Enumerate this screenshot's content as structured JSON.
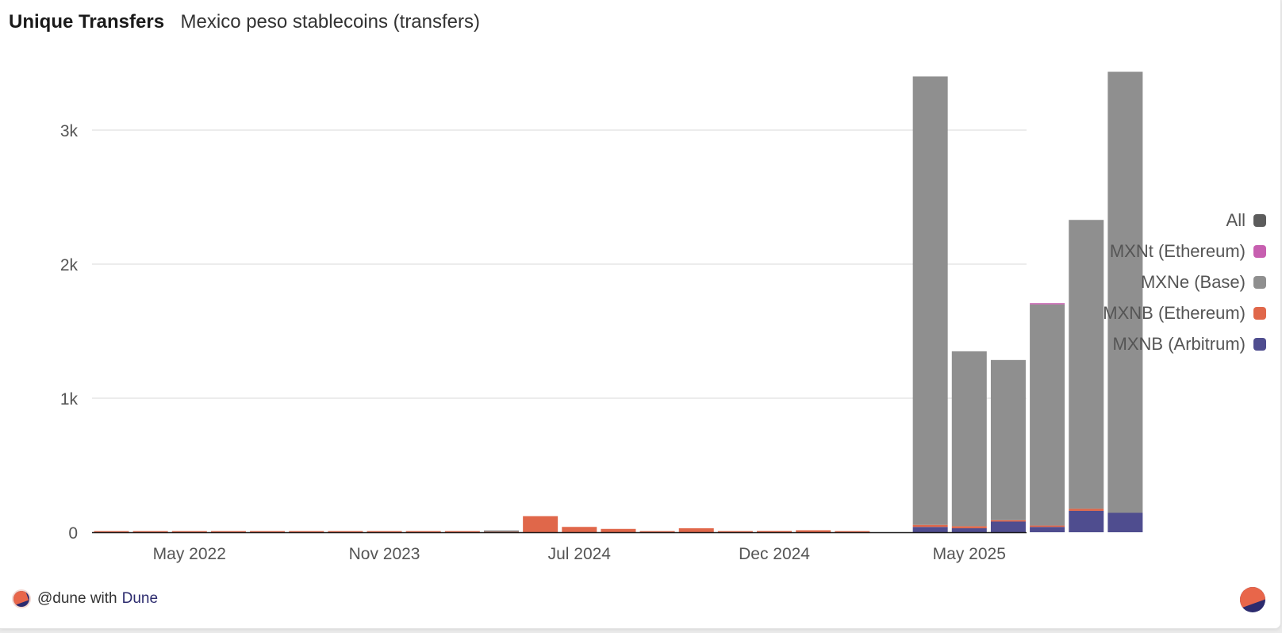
{
  "header": {
    "title": "Unique Transfers",
    "subtitle": "Mexico peso stablecoins (transfers)"
  },
  "legend": [
    {
      "label": "All",
      "color": "#5c5c5c"
    },
    {
      "label": "MXNt (Ethereum)",
      "color": "#c75fb0"
    },
    {
      "label": "MXNe (Base)",
      "color": "#8f8f8f"
    },
    {
      "label": "MXNB (Ethereum)",
      "color": "#e0674a"
    },
    {
      "label": "MXNB (Arbitrum)",
      "color": "#4f4d8f"
    }
  ],
  "footer": {
    "user": "@dune with",
    "brand": "Dune"
  },
  "chart_data": {
    "type": "bar",
    "stacked": true,
    "y_tick_labels": [
      "0",
      "1k",
      "2k",
      "3k"
    ],
    "y_ticks": [
      0,
      1000,
      2000,
      3000
    ],
    "ylim": [
      0,
      3400
    ],
    "x_tick_labels": [
      "May 2022",
      "Nov 2023",
      "Jul 2024",
      "Dec 2024",
      "May 2025"
    ],
    "categories": [
      "2022-03",
      "2022-05",
      "2022-07",
      "2022-09",
      "2022-11",
      "2023-01",
      "2023-03",
      "2023-05",
      "2023-08",
      "2023-11",
      "2024-02",
      "2024-05",
      "2024-06",
      "2024-07",
      "2024-08",
      "2024-09",
      "2024-10",
      "2024-11",
      "2024-12",
      "2025-01",
      "2025-02",
      "2025-03",
      "2025-04",
      "2025-05",
      "2025-06",
      "2025-07",
      "2025-08",
      "2025-09"
    ],
    "x_tick_positions": [
      2,
      7,
      12,
      17,
      22
    ],
    "series": [
      {
        "name": "MXNB (Arbitrum)",
        "color": "#4f4d8f",
        "values": [
          0,
          0,
          0,
          0,
          0,
          0,
          0,
          0,
          0,
          0,
          0,
          0,
          0,
          0,
          0,
          0,
          0,
          0,
          0,
          0,
          0,
          40,
          30,
          80,
          40,
          160,
          145,
          0
        ]
      },
      {
        "name": "MXNB (Ethereum)",
        "color": "#e0674a",
        "values": [
          2,
          3,
          2,
          3,
          2,
          2,
          3,
          2,
          3,
          2,
          4,
          120,
          40,
          25,
          4,
          30,
          8,
          10,
          15,
          5,
          0,
          15,
          15,
          10,
          10,
          15,
          0,
          0
        ]
      },
      {
        "name": "MXNe (Base)",
        "color": "#8f8f8f",
        "values": [
          0,
          0,
          0,
          0,
          0,
          0,
          0,
          0,
          0,
          0,
          10,
          0,
          0,
          0,
          0,
          0,
          0,
          0,
          0,
          0,
          0,
          3345,
          1305,
          1195,
          1650,
          2155,
          3290,
          0
        ]
      },
      {
        "name": "MXNt (Ethereum)",
        "color": "#c75fb0",
        "values": [
          0,
          0,
          0,
          0,
          0,
          0,
          0,
          0,
          0,
          0,
          0,
          0,
          0,
          0,
          0,
          0,
          0,
          0,
          0,
          0,
          0,
          0,
          0,
          0,
          5,
          0,
          0,
          0
        ]
      }
    ]
  }
}
